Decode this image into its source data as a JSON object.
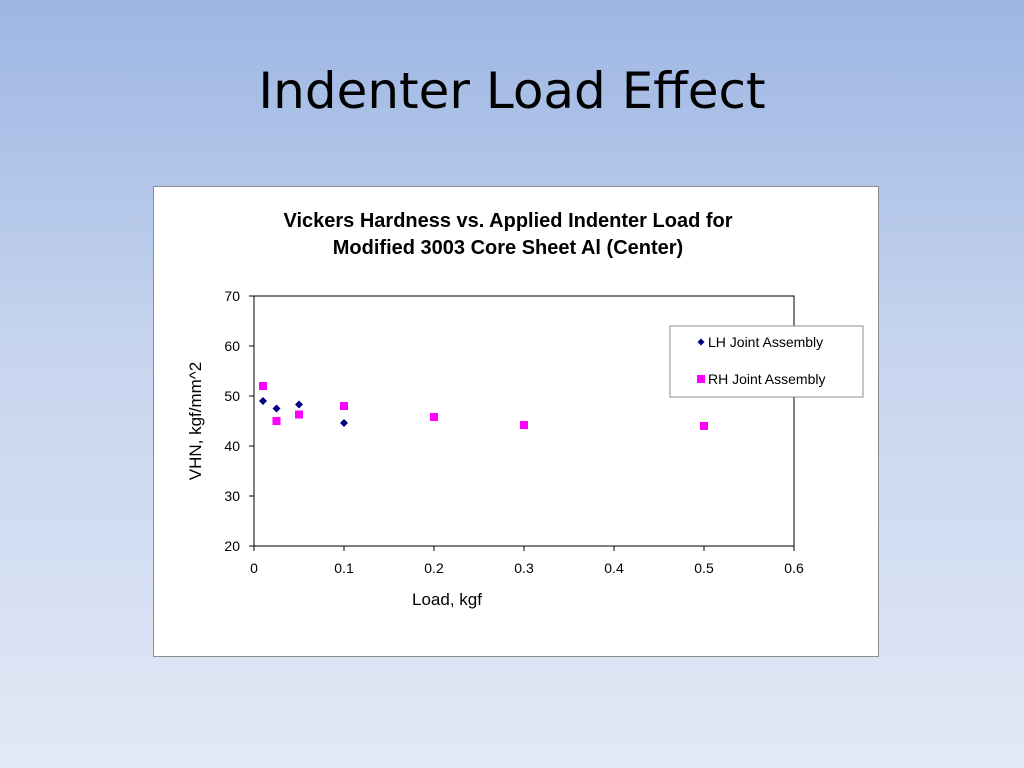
{
  "slide": {
    "title": "Indenter Load Effect"
  },
  "colors": {
    "series_lh": "#000080",
    "series_rh": "#ff00ff"
  },
  "chart_data": {
    "type": "scatter",
    "title_lines": [
      "Vickers Hardness vs. Applied Indenter Load for",
      "Modified 3003 Core Sheet Al (Center)"
    ],
    "xlabel": "Load, kgf",
    "ylabel": "VHN, kgf/mm^2",
    "xlim": [
      0,
      0.6
    ],
    "ylim": [
      20,
      70
    ],
    "x_ticks": [
      0,
      0.1,
      0.2,
      0.3,
      0.4,
      0.5,
      0.6
    ],
    "x_tick_labels": [
      "0",
      "0.1",
      "0.2",
      "0.3",
      "0.4",
      "0.5",
      "0.6"
    ],
    "y_ticks": [
      20,
      30,
      40,
      50,
      60,
      70
    ],
    "y_tick_labels": [
      "20",
      "30",
      "40",
      "50",
      "60",
      "70"
    ],
    "grid": false,
    "legend_position": "top-right",
    "series": [
      {
        "name": "LH Joint Assembly",
        "marker": "diamond",
        "points": [
          [
            0.01,
            49.0
          ],
          [
            0.025,
            47.5
          ],
          [
            0.05,
            48.3
          ],
          [
            0.1,
            44.6
          ]
        ]
      },
      {
        "name": "RH Joint Assembly",
        "marker": "square",
        "points": [
          [
            0.01,
            52.0
          ],
          [
            0.025,
            45.0
          ],
          [
            0.05,
            46.3
          ],
          [
            0.1,
            48.0
          ],
          [
            0.2,
            45.8
          ],
          [
            0.3,
            44.2
          ],
          [
            0.5,
            44.0
          ]
        ]
      }
    ]
  }
}
